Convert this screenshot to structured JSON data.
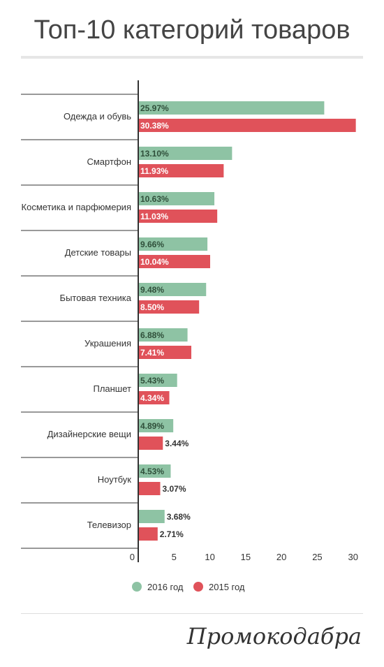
{
  "page": {
    "title": "Топ-10 категорий товаров",
    "logo_text": "Промокодабра"
  },
  "chart_data": {
    "type": "bar",
    "orientation": "horizontal",
    "categories": [
      "Одежда и обувь",
      "Смартфон",
      "Косметика и парфюмерия",
      "Детские товары",
      "Бытовая техника",
      "Украшения",
      "Планшет",
      "Дизайнерские вещи",
      "Ноутбук",
      "Телевизор"
    ],
    "series": [
      {
        "name": "2016 год",
        "color": "#8ec3a4",
        "values": [
          25.97,
          13.1,
          10.63,
          9.66,
          9.48,
          6.88,
          5.43,
          4.89,
          4.53,
          3.68
        ],
        "labels": [
          "25.97%",
          "13.10%",
          "10.63%",
          "9.66%",
          "9.48%",
          "6.88%",
          "5.43%",
          "4.89%",
          "4.53%",
          "3.68%"
        ]
      },
      {
        "name": "2015 год",
        "color": "#e0525a",
        "values": [
          30.38,
          11.93,
          11.03,
          10.04,
          8.5,
          7.41,
          4.34,
          3.44,
          3.07,
          2.71
        ],
        "labels": [
          "30.38%",
          "11.93%",
          "11.03%",
          "10.04%",
          "8.50%",
          "7.41%",
          "4.34%",
          "3.44%",
          "3.07%",
          "2.71%"
        ]
      }
    ],
    "xlim": [
      0,
      31
    ],
    "xticks": [
      0,
      5,
      10,
      15,
      20,
      25,
      30
    ],
    "xtick_labels": [
      "0",
      "5",
      "10",
      "15",
      "20",
      "25",
      "30"
    ],
    "grid": false,
    "legend_position": "bottom"
  }
}
